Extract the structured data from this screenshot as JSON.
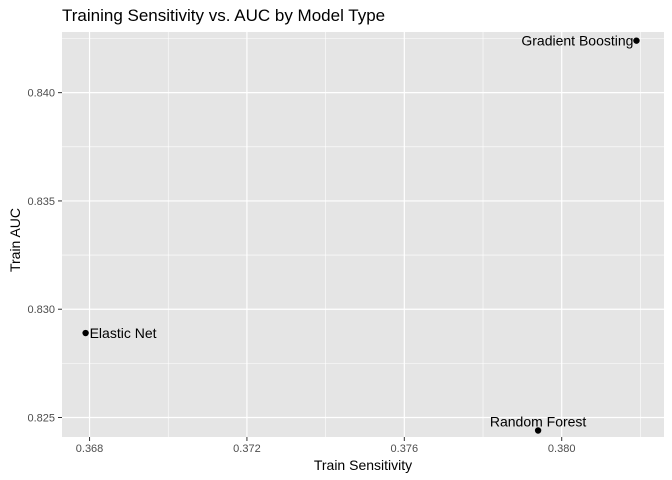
{
  "chart_data": {
    "type": "scatter",
    "title": "Training Sensitivity vs. AUC by Model Type",
    "xlabel": "Train Sensitivity",
    "ylabel": "Train AUC",
    "xlim": [
      0.3673,
      0.3826
    ],
    "ylim": [
      0.8241,
      0.8428
    ],
    "x_ticks": [
      0.368,
      0.372,
      0.376,
      0.38
    ],
    "x_tick_labels": [
      "0.368",
      "0.372",
      "0.376",
      "0.380"
    ],
    "y_ticks": [
      0.825,
      0.83,
      0.835,
      0.84
    ],
    "y_tick_labels": [
      "0.825",
      "0.830",
      "0.835",
      "0.840"
    ],
    "grid": true,
    "legend": "none",
    "points": [
      {
        "label": "Gradient Boosting",
        "x": 0.3819,
        "y": 0.8424,
        "label_position": "left"
      },
      {
        "label": "Elastic Net",
        "x": 0.3679,
        "y": 0.8289,
        "label_position": "right"
      },
      {
        "label": "Random Forest",
        "x": 0.3794,
        "y": 0.8244,
        "label_position": "above"
      }
    ],
    "colors": {
      "panel_background": "#e5e5e5",
      "grid": "#ffffff",
      "point": "#000000"
    }
  }
}
